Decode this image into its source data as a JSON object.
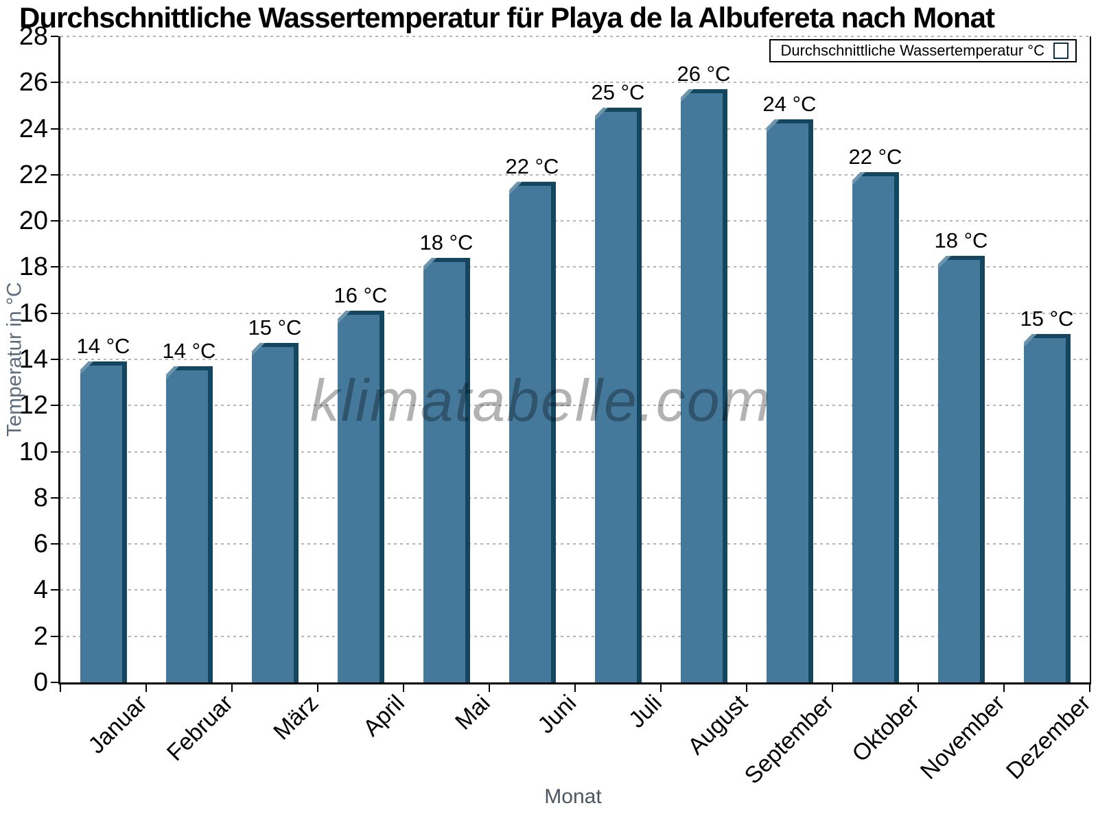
{
  "title": "Durchschnittliche Wassertemperatur für Playa de la Albufereta nach Monat",
  "legend": {
    "label": "Durchschnittliche Wassertemperatur °C"
  },
  "watermark": "klimatabelle.com",
  "axes": {
    "ylabel": "Temperatur in °C",
    "xlabel": "Monat"
  },
  "colors": {
    "bar_fill": "#44799B",
    "bar_edge": "#14465F",
    "bar_bevel": "#6C95AC",
    "grid": "#B4B4B4",
    "axis": "#000000",
    "ylabel_text": "#5F6E7E",
    "xlabel_text": "#4B555F"
  },
  "chart_data": {
    "type": "bar",
    "title": "Durchschnittliche Wassertemperatur für Playa de la Albufereta nach Monat",
    "categories": [
      "Januar",
      "Februar",
      "März",
      "April",
      "Mai",
      "Juni",
      "Juli",
      "August",
      "September",
      "Oktober",
      "November",
      "Dezember"
    ],
    "values": [
      14,
      14,
      15,
      16,
      18,
      22,
      25,
      26,
      24,
      22,
      18,
      15
    ],
    "bar_labels": [
      "14 °C",
      "14 °C",
      "15 °C",
      "16 °C",
      "18 °C",
      "22 °C",
      "25 °C",
      "26 °C",
      "24 °C",
      "22 °C",
      "18 °C",
      "15 °C"
    ],
    "drawn_values": [
      13.9,
      13.7,
      14.7,
      16.1,
      18.4,
      21.7,
      24.9,
      25.7,
      24.4,
      22.1,
      18.5,
      15.1
    ],
    "series": [
      {
        "name": "Durchschnittliche Wassertemperatur °C",
        "values": [
          14,
          14,
          15,
          16,
          18,
          22,
          25,
          26,
          24,
          22,
          18,
          15
        ]
      }
    ],
    "xlabel": "Monat",
    "ylabel": "Temperatur in °C",
    "ylim": [
      0,
      28
    ],
    "yticks": [
      0,
      2,
      4,
      6,
      8,
      10,
      12,
      14,
      16,
      18,
      20,
      22,
      24,
      26,
      28
    ],
    "grid": "horizontal-dashed",
    "legend_position": "top-right"
  }
}
